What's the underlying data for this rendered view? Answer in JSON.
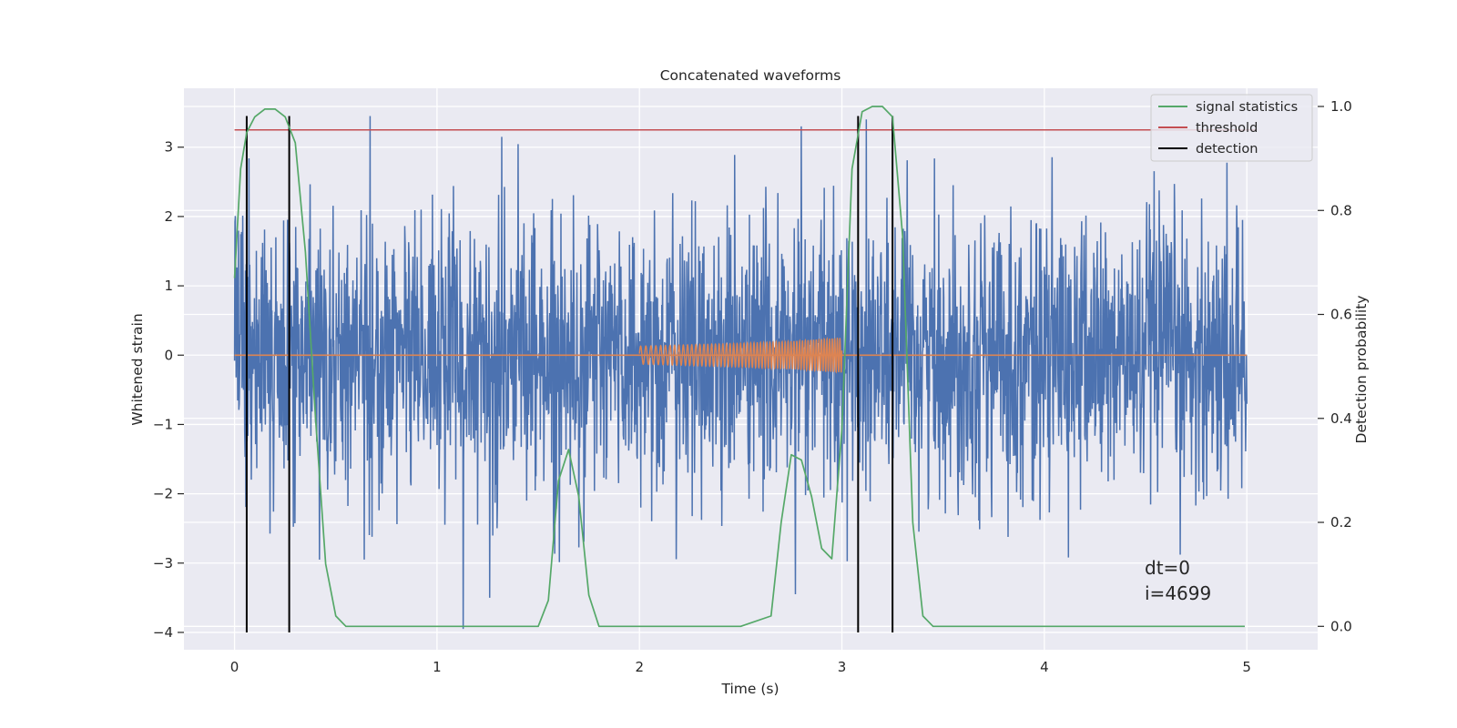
{
  "chart_data": {
    "type": "line",
    "title": "Concatenated waveforms",
    "xlabel": "Time (s)",
    "ylabel": "Whitened strain",
    "y2label": "Detection probability",
    "xlim": [
      -0.25,
      5.35
    ],
    "ylim": [
      -4.25,
      3.85
    ],
    "y2lim": [
      -0.045,
      1.035
    ],
    "x_ticks": [
      0,
      1,
      2,
      3,
      4,
      5
    ],
    "x_tick_labels": [
      "0",
      "1",
      "2",
      "3",
      "4",
      "5"
    ],
    "y_ticks": [
      -4,
      -3,
      -2,
      -1,
      0,
      1,
      2,
      3
    ],
    "y_tick_labels": [
      "−4",
      "−3",
      "−2",
      "−1",
      "0",
      "1",
      "2",
      "3"
    ],
    "y2_ticks": [
      0.0,
      0.2,
      0.4,
      0.6,
      0.8,
      1.0
    ],
    "y2_tick_labels": [
      "0.0",
      "0.2",
      "0.4",
      "0.6",
      "0.8",
      "1.0"
    ],
    "grid": true,
    "legend_position": "top-right",
    "legend": [
      {
        "label": "signal statistics",
        "color": "#55a868"
      },
      {
        "label": "threshold",
        "color": "#c44e52"
      },
      {
        "label": "detection",
        "color": "#000000"
      }
    ],
    "series": [
      {
        "name": "noisy strain",
        "axis": "left",
        "color": "#4c72b0",
        "x_range": [
          0,
          5
        ],
        "approx_range": [
          -4,
          3.45
        ],
        "peaks": [
          {
            "x": 0.67,
            "y": 3.45
          },
          {
            "x": 1.32,
            "y": 3.15
          },
          {
            "x": 2.8,
            "y": 3.3
          },
          {
            "x": 3.12,
            "y": 3.4
          },
          {
            "x": 1.13,
            "y": -3.95
          },
          {
            "x": 0.42,
            "y": -2.95
          },
          {
            "x": 2.77,
            "y": -3.45
          },
          {
            "x": 1.26,
            "y": -3.5
          }
        ]
      },
      {
        "name": "injected signal",
        "axis": "left",
        "color": "#dd8452",
        "x": [
          0,
          2,
          2.25,
          2.5,
          2.75,
          3.0,
          5
        ],
        "amplitude": [
          0,
          0.13,
          0.15,
          0.17,
          0.2,
          0.25,
          0
        ]
      },
      {
        "name": "signal statistics",
        "axis": "right",
        "color": "#55a868",
        "x": [
          0.0,
          0.03,
          0.06,
          0.1,
          0.15,
          0.2,
          0.25,
          0.3,
          0.35,
          0.4,
          0.45,
          0.5,
          0.55,
          0.6,
          1.0,
          1.5,
          1.55,
          1.6,
          1.65,
          1.7,
          1.75,
          1.8,
          2.0,
          2.5,
          2.65,
          2.7,
          2.75,
          2.8,
          2.85,
          2.9,
          2.95,
          3.0,
          3.05,
          3.1,
          3.15,
          3.2,
          3.25,
          3.3,
          3.35,
          3.4,
          3.45,
          3.5,
          4.0,
          4.5,
          4.99
        ],
        "y": [
          0.67,
          0.88,
          0.95,
          0.98,
          0.995,
          0.995,
          0.98,
          0.93,
          0.72,
          0.4,
          0.12,
          0.02,
          0.0,
          0.0,
          0.0,
          0.0,
          0.05,
          0.28,
          0.34,
          0.25,
          0.06,
          0.0,
          0.0,
          0.0,
          0.02,
          0.2,
          0.33,
          0.32,
          0.25,
          0.15,
          0.13,
          0.38,
          0.88,
          0.99,
          1.0,
          1.0,
          0.98,
          0.75,
          0.2,
          0.02,
          0.0,
          0.0,
          0.0,
          0.0,
          0.0
        ]
      },
      {
        "name": "threshold",
        "axis": "right",
        "color": "#c44e52",
        "x": [
          0,
          5.05
        ],
        "y": [
          0.955,
          0.955
        ]
      }
    ],
    "detections": [
      0.06,
      0.27,
      3.08,
      3.25
    ],
    "detection_range": [
      -4,
      3.45
    ],
    "annotations": [
      "dt=0",
      "i=4699"
    ]
  }
}
